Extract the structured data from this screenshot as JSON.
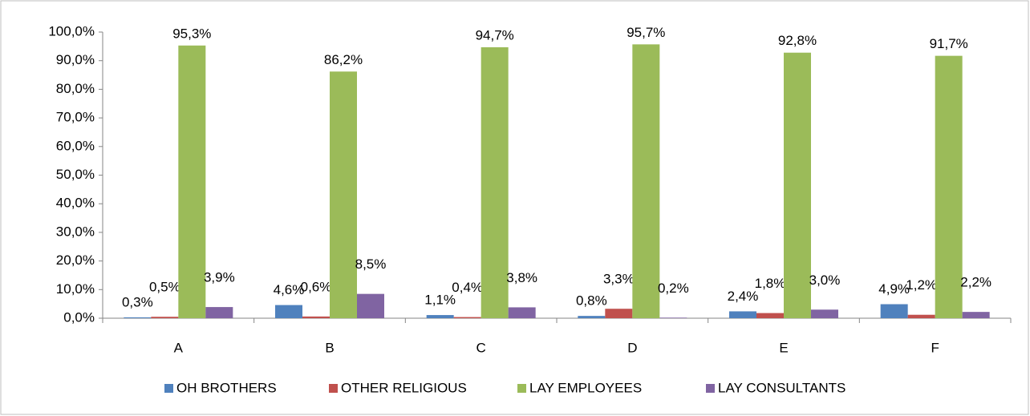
{
  "chart_data": {
    "type": "bar",
    "categories": [
      "A",
      "B",
      "C",
      "D",
      "E",
      "F"
    ],
    "series": [
      {
        "name": "OH BROTHERS",
        "color": "#4f81bd",
        "values": [
          0.3,
          4.6,
          1.1,
          0.8,
          2.4,
          4.9
        ],
        "value_labels": [
          "0,3%",
          "4,6%",
          "1,1%",
          "0,8%",
          "2,4%",
          "4,9%"
        ]
      },
      {
        "name": "OTHER RELIGIOUS",
        "color": "#c0504d",
        "values": [
          0.5,
          0.6,
          0.4,
          3.3,
          1.8,
          1.2
        ],
        "value_labels": [
          "0,5%",
          "0,6%",
          "0,4%",
          "3,3%",
          "1,8%",
          "1,2%"
        ]
      },
      {
        "name": "LAY EMPLOYEES",
        "color": "#9bbb59",
        "values": [
          95.3,
          86.2,
          94.7,
          95.7,
          92.8,
          91.7
        ],
        "value_labels": [
          "95,3%",
          "86,2%",
          "94,7%",
          "95,7%",
          "92,8%",
          "91,7%"
        ]
      },
      {
        "name": "LAY CONSULTANTS",
        "color": "#8064a2",
        "values": [
          3.9,
          8.5,
          3.8,
          0.2,
          3.0,
          2.2
        ],
        "value_labels": [
          "3,9%",
          "8,5%",
          "3,8%",
          "0,2%",
          "3,0%",
          "2,2%"
        ]
      }
    ],
    "ylim": [
      0,
      100
    ],
    "yticks": [
      {
        "value": 0,
        "label": "0,0%"
      },
      {
        "value": 10,
        "label": "10,0%"
      },
      {
        "value": 20,
        "label": "20,0%"
      },
      {
        "value": 30,
        "label": "30,0%"
      },
      {
        "value": 40,
        "label": "40,0%"
      },
      {
        "value": 50,
        "label": "50,0%"
      },
      {
        "value": 60,
        "label": "60,0%"
      },
      {
        "value": 70,
        "label": "70,0%"
      },
      {
        "value": 80,
        "label": "80,0%"
      },
      {
        "value": 90,
        "label": "90,0%"
      },
      {
        "value": 100,
        "label": "100,0%"
      }
    ],
    "grid": false,
    "legend": "bottom"
  }
}
